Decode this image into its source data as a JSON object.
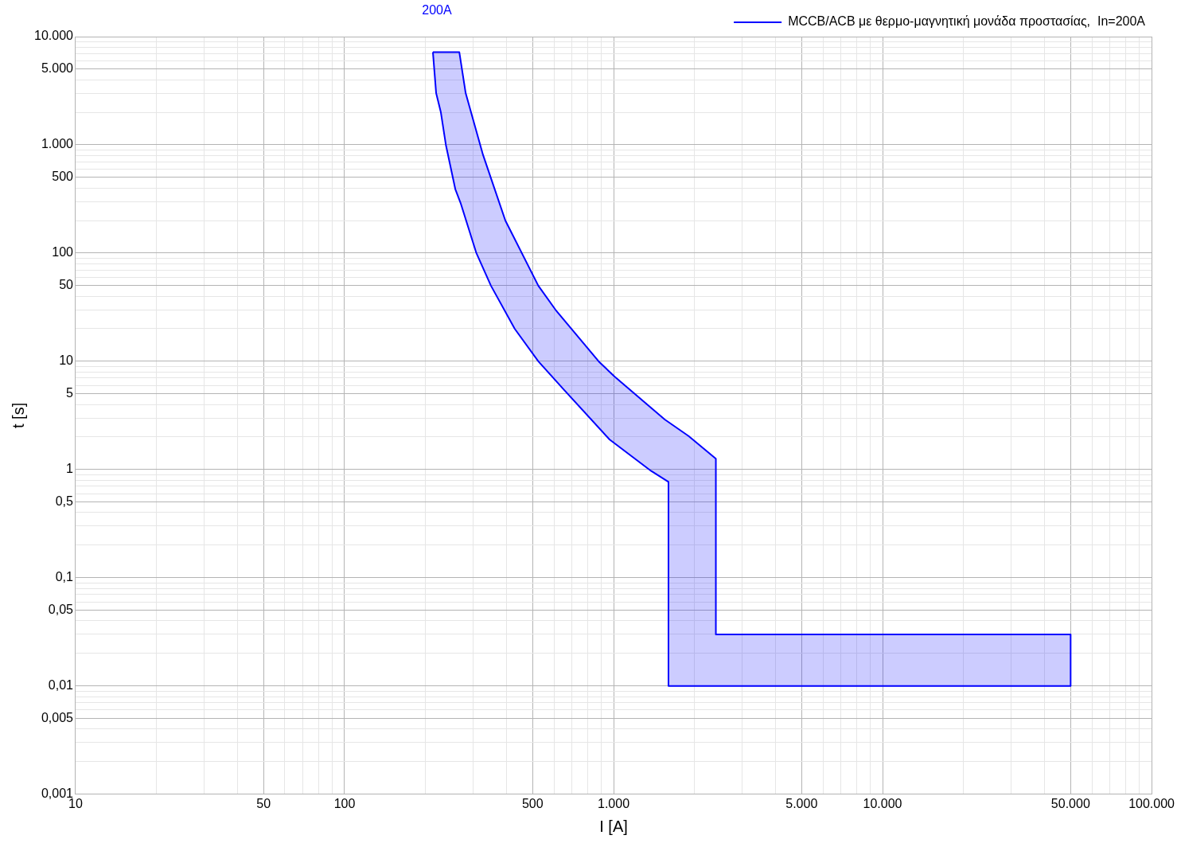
{
  "chart_data": {
    "type": "area",
    "xlabel": "I [A]",
    "ylabel": "t [s]",
    "annotations": [
      "200A"
    ],
    "log": "xy",
    "grid": true,
    "legend": "top right",
    "xlim": [
      10,
      100000
    ],
    "ylim": [
      0.001,
      10000
    ],
    "xticks": [
      10,
      {
        "value": 20,
        "label": null
      },
      {
        "value": 30,
        "label": null
      },
      {
        "value": 40,
        "label": null
      },
      50,
      {
        "value": 60,
        "label": null
      },
      {
        "value": 70,
        "label": null
      },
      {
        "value": 80,
        "label": null
      },
      {
        "value": 90,
        "label": null
      },
      100,
      {
        "value": 200,
        "label": null
      },
      {
        "value": 300,
        "label": null
      },
      {
        "value": 400,
        "label": null
      },
      500,
      {
        "value": 600,
        "label": null
      },
      {
        "value": 700,
        "label": null
      },
      {
        "value": 800,
        "label": null
      },
      {
        "value": 900,
        "label": null
      },
      {
        "value": 1000,
        "label": "1.000"
      },
      {
        "value": 2000,
        "label": null
      },
      {
        "value": 3000,
        "label": null
      },
      {
        "value": 4000,
        "label": null
      },
      {
        "value": 5000,
        "label": "5.000"
      },
      {
        "value": 6000,
        "label": null
      },
      {
        "value": 7000,
        "label": null
      },
      {
        "value": 8000,
        "label": null
      },
      {
        "value": 9000,
        "label": null
      },
      {
        "value": 10000,
        "label": "10.000"
      },
      {
        "value": 20000,
        "label": null
      },
      {
        "value": 30000,
        "label": null
      },
      {
        "value": 40000,
        "label": null
      },
      {
        "value": 50000,
        "label": "50.000"
      },
      {
        "value": 60000,
        "label": null
      },
      {
        "value": 70000,
        "label": null
      },
      {
        "value": 80000,
        "label": null
      },
      {
        "value": 90000,
        "label": null
      },
      {
        "value": 100000,
        "label": "100.000"
      }
    ],
    "yticks": [
      {
        "value": 0.001,
        "label": "0,001"
      },
      {
        "value": 0.002,
        "label": null
      },
      {
        "value": 0.003,
        "label": null
      },
      {
        "value": 0.004,
        "label": null
      },
      {
        "value": 0.005,
        "label": "0,005"
      },
      {
        "value": 0.006,
        "label": null
      },
      {
        "value": 0.007,
        "label": null
      },
      {
        "value": 0.008,
        "label": null
      },
      {
        "value": 0.009,
        "label": null
      },
      {
        "value": 0.01,
        "label": "0,01"
      },
      {
        "value": 0.02,
        "label": null
      },
      {
        "value": 0.03,
        "label": null
      },
      {
        "value": 0.04,
        "label": null
      },
      {
        "value": 0.05,
        "label": "0,05"
      },
      {
        "value": 0.06,
        "label": null
      },
      {
        "value": 0.07,
        "label": null
      },
      {
        "value": 0.08,
        "label": null
      },
      {
        "value": 0.09,
        "label": null
      },
      {
        "value": 0.1,
        "label": "0,1"
      },
      {
        "value": 0.2,
        "label": null
      },
      {
        "value": 0.3,
        "label": null
      },
      {
        "value": 0.4,
        "label": null
      },
      {
        "value": 0.5,
        "label": "0,5"
      },
      {
        "value": 0.6,
        "label": null
      },
      {
        "value": 0.7,
        "label": null
      },
      {
        "value": 0.8,
        "label": null
      },
      {
        "value": 0.9,
        "label": null
      },
      1,
      {
        "value": 2,
        "label": null
      },
      {
        "value": 3,
        "label": null
      },
      {
        "value": 4,
        "label": null
      },
      5,
      {
        "value": 6,
        "label": null
      },
      {
        "value": 7,
        "label": null
      },
      {
        "value": 8,
        "label": null
      },
      {
        "value": 9,
        "label": null
      },
      10,
      {
        "value": 20,
        "label": null
      },
      {
        "value": 30,
        "label": null
      },
      {
        "value": 40,
        "label": null
      },
      50,
      {
        "value": 60,
        "label": null
      },
      {
        "value": 70,
        "label": null
      },
      {
        "value": 80,
        "label": null
      },
      {
        "value": 90,
        "label": null
      },
      100,
      {
        "value": 200,
        "label": null
      },
      {
        "value": 300,
        "label": null
      },
      {
        "value": 400,
        "label": null
      },
      500,
      {
        "value": 600,
        "label": null
      },
      {
        "value": 700,
        "label": null
      },
      {
        "value": 800,
        "label": null
      },
      {
        "value": 900,
        "label": null
      },
      {
        "value": 1000,
        "label": "1.000"
      },
      {
        "value": 2000,
        "label": null
      },
      {
        "value": 3000,
        "label": null
      },
      {
        "value": 4000,
        "label": null
      },
      {
        "value": 5000,
        "label": "5.000"
      },
      {
        "value": 6000,
        "label": null
      },
      {
        "value": 7000,
        "label": null
      },
      {
        "value": 8000,
        "label": null
      },
      {
        "value": 9000,
        "label": null
      },
      {
        "value": 10000,
        "label": "10.000"
      }
    ],
    "series": [
      {
        "name": "MCCB/ACB με θερμο-μαγνητική μονάδα προστασίας,  In=200A",
        "color": "#0000ff",
        "x": [
          213,
          219,
          228,
          238,
          258,
          270,
          309,
          350,
          429,
          525,
          657,
          965,
          1380,
          1600,
          1600,
          50000,
          50000,
          2400,
          2400,
          1900,
          1550,
          1010,
          880,
          608,
          525,
          396,
          327,
          282,
          267,
          213
        ],
        "values": [
          7200,
          3000,
          2000,
          1000,
          390,
          290,
          100,
          50,
          20,
          10,
          5.4,
          1.9,
          0.97,
          0.77,
          0.01,
          0.01,
          0.03,
          0.03,
          1.26,
          2.04,
          2.9,
          7.2,
          10,
          30,
          50,
          200,
          810,
          3000,
          7200,
          7200
        ]
      }
    ]
  }
}
